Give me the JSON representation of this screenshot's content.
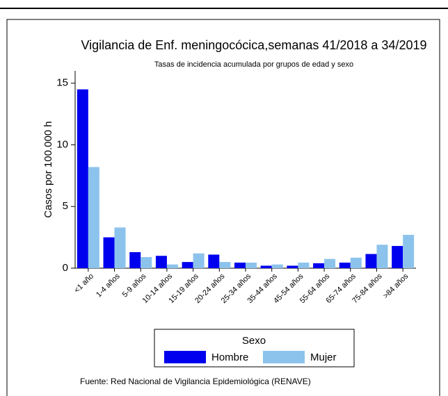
{
  "chart_data": {
    "type": "bar",
    "title": "Vigilancia de Enf. meningocócica,semanas 41/2018 a 34/2019",
    "subtitle": "Tasas de incidencia acumulada por grupos de edad y sexo",
    "y_label": "Casos por 100.000 h",
    "legend_title": "Sexo",
    "source": "Fuente: Red Nacional de Vigilancia Epidemiológica (RENAVE)",
    "categories": [
      "<1 año",
      "1-4 años",
      "5-9 años",
      "10-14 años",
      "15-19 años",
      "20-24 años",
      "25-34 años",
      "35-44 años",
      "45-54 años",
      "55-64 años",
      "65-74 años",
      "75-84 años",
      ">84 años"
    ],
    "series": [
      {
        "name": "Hombre",
        "color": "#0000ee",
        "values": [
          14.5,
          2.5,
          1.3,
          1.0,
          0.5,
          1.1,
          0.45,
          0.2,
          0.2,
          0.4,
          0.45,
          1.15,
          1.8
        ]
      },
      {
        "name": "Mujer",
        "color": "#8cc3ec",
        "values": [
          8.2,
          3.3,
          0.9,
          0.3,
          1.2,
          0.5,
          0.45,
          0.3,
          0.45,
          0.75,
          0.85,
          1.9,
          2.7
        ]
      }
    ],
    "ylim": [
      0,
      16
    ],
    "yticks": [
      0,
      5,
      10,
      15
    ],
    "legend_position": "bottom"
  }
}
